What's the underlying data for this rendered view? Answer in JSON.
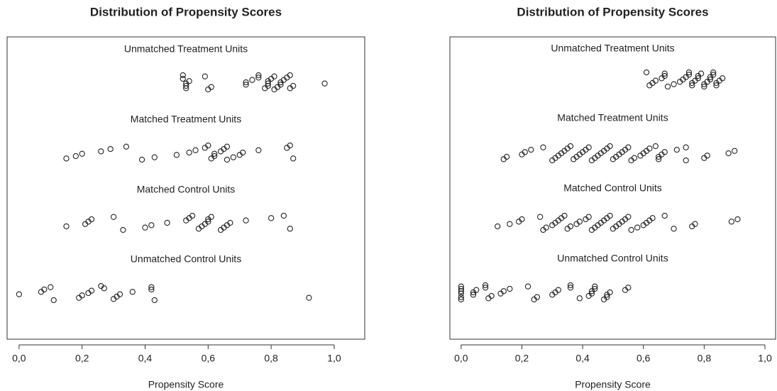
{
  "chart_data": [
    {
      "type": "strip",
      "title": "Distribution of Propensity Scores",
      "xlabel": "Propensity Score",
      "color": "#222222",
      "xlim": [
        -0.038,
        1.097
      ],
      "xticks": [
        {
          "value": 0,
          "label": "0,0"
        },
        {
          "value": 0.2,
          "label": "0,2"
        },
        {
          "value": 0.4,
          "label": "0,4"
        },
        {
          "value": 0.6,
          "label": "0,6"
        },
        {
          "value": 0.8,
          "label": "0,8"
        },
        {
          "value": 1,
          "label": "1,0"
        }
      ],
      "groups": [
        {
          "name": "Unmatched Treatment Units",
          "values": [
            0.52,
            0.53,
            0.53,
            0.53,
            0.54,
            0.52,
            0.59,
            0.6,
            0.61,
            0.72,
            0.72,
            0.74,
            0.76,
            0.76,
            0.78,
            0.79,
            0.79,
            0.79,
            0.8,
            0.81,
            0.81,
            0.82,
            0.83,
            0.83,
            0.84,
            0.85,
            0.86,
            0.86,
            0.87,
            0.97
          ]
        },
        {
          "name": "Matched Treatment Units",
          "values": [
            0.15,
            0.18,
            0.2,
            0.26,
            0.29,
            0.34,
            0.39,
            0.43,
            0.5,
            0.54,
            0.56,
            0.59,
            0.6,
            0.61,
            0.62,
            0.62,
            0.64,
            0.65,
            0.66,
            0.66,
            0.68,
            0.7,
            0.71,
            0.76,
            0.85,
            0.86,
            0.87
          ]
        },
        {
          "name": "Matched Control Units",
          "values": [
            0.15,
            0.21,
            0.22,
            0.23,
            0.3,
            0.33,
            0.4,
            0.42,
            0.47,
            0.53,
            0.54,
            0.55,
            0.57,
            0.58,
            0.59,
            0.6,
            0.6,
            0.61,
            0.64,
            0.65,
            0.66,
            0.67,
            0.72,
            0.8,
            0.84,
            0.86
          ]
        },
        {
          "name": "Unmatched Control Units",
          "values": [
            0.0,
            0.07,
            0.08,
            0.1,
            0.11,
            0.19,
            0.2,
            0.22,
            0.23,
            0.27,
            0.26,
            0.3,
            0.31,
            0.32,
            0.36,
            0.42,
            0.42,
            0.43,
            0.92
          ]
        }
      ]
    },
    {
      "type": "strip",
      "title": "Distribution of Propensity Scores",
      "xlabel": "Propensity Score",
      "color": "#222222",
      "xlim": [
        -0.037,
        1.035
      ],
      "xticks": [
        {
          "value": 0,
          "label": "0,0"
        },
        {
          "value": 0.2,
          "label": "0,2"
        },
        {
          "value": 0.4,
          "label": "0,4"
        },
        {
          "value": 0.6,
          "label": "0,6"
        },
        {
          "value": 0.8,
          "label": "0,8"
        },
        {
          "value": 1,
          "label": "1,0"
        }
      ],
      "groups": [
        {
          "name": "Unmatched Treatment Units",
          "values": [
            0.61,
            0.62,
            0.63,
            0.64,
            0.66,
            0.67,
            0.67,
            0.68,
            0.7,
            0.72,
            0.73,
            0.74,
            0.75,
            0.75,
            0.76,
            0.76,
            0.77,
            0.78,
            0.78,
            0.79,
            0.8,
            0.8,
            0.81,
            0.82,
            0.82,
            0.83,
            0.83,
            0.84,
            0.84,
            0.85,
            0.86
          ]
        },
        {
          "name": "Matched Treatment Units",
          "values": [
            0.14,
            0.15,
            0.2,
            0.21,
            0.23,
            0.27,
            0.3,
            0.31,
            0.32,
            0.33,
            0.34,
            0.35,
            0.36,
            0.37,
            0.38,
            0.39,
            0.4,
            0.41,
            0.42,
            0.43,
            0.44,
            0.45,
            0.46,
            0.47,
            0.48,
            0.49,
            0.5,
            0.51,
            0.52,
            0.53,
            0.54,
            0.55,
            0.56,
            0.57,
            0.59,
            0.6,
            0.61,
            0.62,
            0.64,
            0.65,
            0.65,
            0.66,
            0.67,
            0.71,
            0.74,
            0.74,
            0.8,
            0.81,
            0.88,
            0.9
          ]
        },
        {
          "name": "Matched Control Units",
          "values": [
            0.12,
            0.16,
            0.19,
            0.2,
            0.26,
            0.27,
            0.28,
            0.3,
            0.31,
            0.32,
            0.33,
            0.34,
            0.35,
            0.36,
            0.38,
            0.39,
            0.41,
            0.42,
            0.43,
            0.44,
            0.45,
            0.46,
            0.47,
            0.48,
            0.49,
            0.5,
            0.51,
            0.52,
            0.53,
            0.54,
            0.55,
            0.56,
            0.58,
            0.6,
            0.61,
            0.62,
            0.63,
            0.67,
            0.7,
            0.76,
            0.77,
            0.89,
            0.91
          ]
        },
        {
          "name": "Unmatched Control Units",
          "values": [
            0.0,
            0.0,
            0.0,
            0.0,
            0.0,
            0.0,
            0.04,
            0.04,
            0.05,
            0.08,
            0.08,
            0.09,
            0.1,
            0.13,
            0.14,
            0.16,
            0.22,
            0.24,
            0.25,
            0.3,
            0.31,
            0.32,
            0.36,
            0.36,
            0.39,
            0.42,
            0.43,
            0.43,
            0.44,
            0.44,
            0.47,
            0.48,
            0.48,
            0.49,
            0.54,
            0.55
          ]
        }
      ]
    }
  ]
}
